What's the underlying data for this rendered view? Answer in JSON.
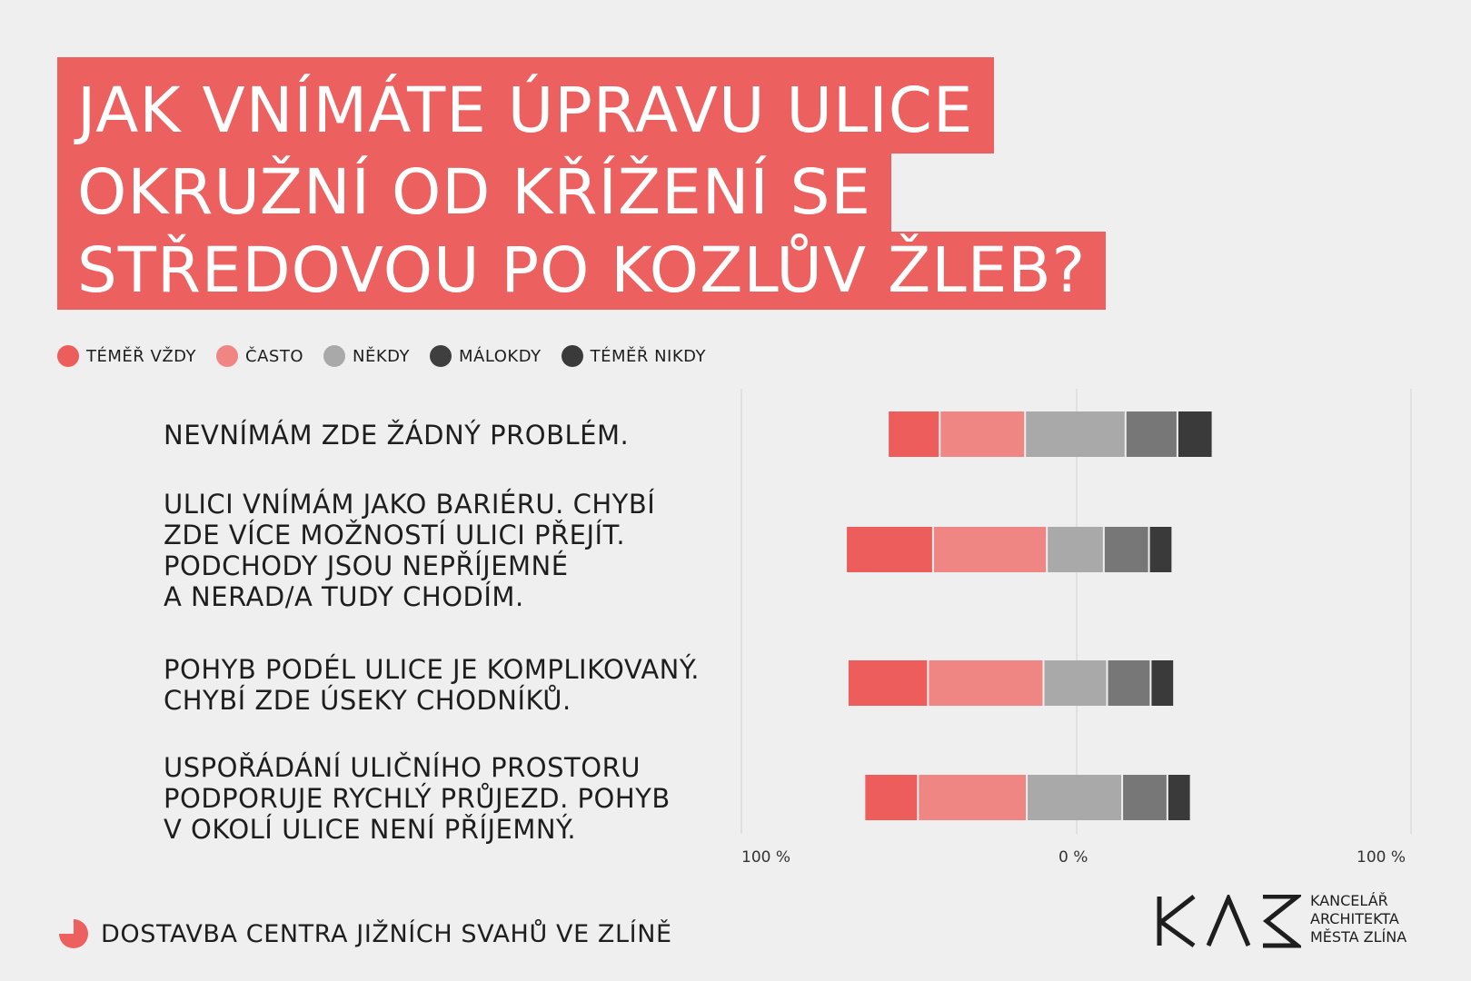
{
  "title_lines": [
    "JAK VNÍMÁTE ÚPRAVU ULICE",
    "OKRUŽNÍ OD KŘÍŽENÍ SE",
    "STŘEDOVOU PO KOZLŮV ŽLEB?"
  ],
  "legend": [
    {
      "label": "TÉMĚŘ VŽDY",
      "color": "#ec5d5c"
    },
    {
      "label": "ČASTO",
      "color": "#f08683"
    },
    {
      "label": "NĚKDY",
      "color": "#a9a9a9"
    },
    {
      "label": "MÁLOKDY",
      "color": "#777777"
    },
    {
      "label": "TÉMĚŘ NIKDY",
      "color": "#3a3a3a"
    }
  ],
  "rows": [
    {
      "label": "NEVNÍMÁM ZDE ŽÁDNÝ PROBLÉM."
    },
    {
      "label": "ULICI VNÍMÁM JAKO BARIÉRU. CHYBÍ\nZDE VÍCE MOŽNOSTÍ ULICI PŘEJÍT.\nPODCHODY JSOU NEPŘÍJEMNÉ\nA NERAD/A TUDY CHODÍM."
    },
    {
      "label": "POHYB PODÉL ULICE JE KOMPLIKOVANÝ.\nCHYBÍ ZDE ÚSEKY CHODNÍKŮ."
    },
    {
      "label": "USPOŘÁDÁNÍ ULIČNÍHO PROSTORU\nPODPORUJE RYCHLÝ PRŮJEZD. POHYB\nV OKOLÍ ULICE NENÍ PŘÍJEMNÝ."
    }
  ],
  "axis_labels": {
    "left": "100 %",
    "center": "0 %",
    "right": "100 %"
  },
  "footer": {
    "project": "DOSTAVBA CENTRA JIŽNÍCH SVAHŮ VE ZLÍNĚ"
  },
  "logo": {
    "mark": "KAM",
    "text": "KANCELÁŘ\nARCHITEKTA\nMĚSTA ZLÍNA"
  },
  "chart_data": {
    "type": "bar",
    "orientation": "horizontal-diverging-stacked",
    "categories": [
      "NEVNÍMÁM ZDE ŽÁDNÝ PROBLÉM.",
      "ULICI VNÍMÁM JAKO BARIÉRU. CHYBÍ ZDE VÍCE MOŽNOSTÍ ULICI PŘEJÍT. PODCHODY JSOU NEPŘÍJEMNÉ A NERAD/A TUDY CHODÍM.",
      "POHYB PODÉL ULICE JE KOMPLIKOVANÝ. CHYBÍ ZDE ÚSEKY CHODNÍKŮ.",
      "USPOŘÁDÁNÍ ULIČNÍHO PROSTORU PODPORUJE RYCHLÝ PRŮJEZD. POHYB V OKOLÍ ULICE NENÍ PŘÍJEMNÝ."
    ],
    "series": [
      {
        "name": "TÉMĚŘ VŽDY",
        "values": [
          15.5,
          26,
          24,
          16
        ]
      },
      {
        "name": "ČASTO",
        "values": [
          25.5,
          34,
          34.5,
          32.5
        ]
      },
      {
        "name": "NĚKDY",
        "values": [
          30,
          17,
          19,
          28.5
        ]
      },
      {
        "name": "MÁLOKDY",
        "values": [
          15.5,
          13.5,
          13,
          13.5
        ]
      },
      {
        "name": "TÉMĚŘ NIKDY",
        "values": [
          10.5,
          7,
          7,
          7
        ]
      }
    ],
    "left_end_percent": [
      -56,
      -68.5,
      -68,
      -63
    ],
    "xlim": [
      -100,
      100
    ],
    "ticks": [
      "100 %",
      "0 %",
      "100 %"
    ],
    "grid": true,
    "legend_position": "top-left"
  }
}
